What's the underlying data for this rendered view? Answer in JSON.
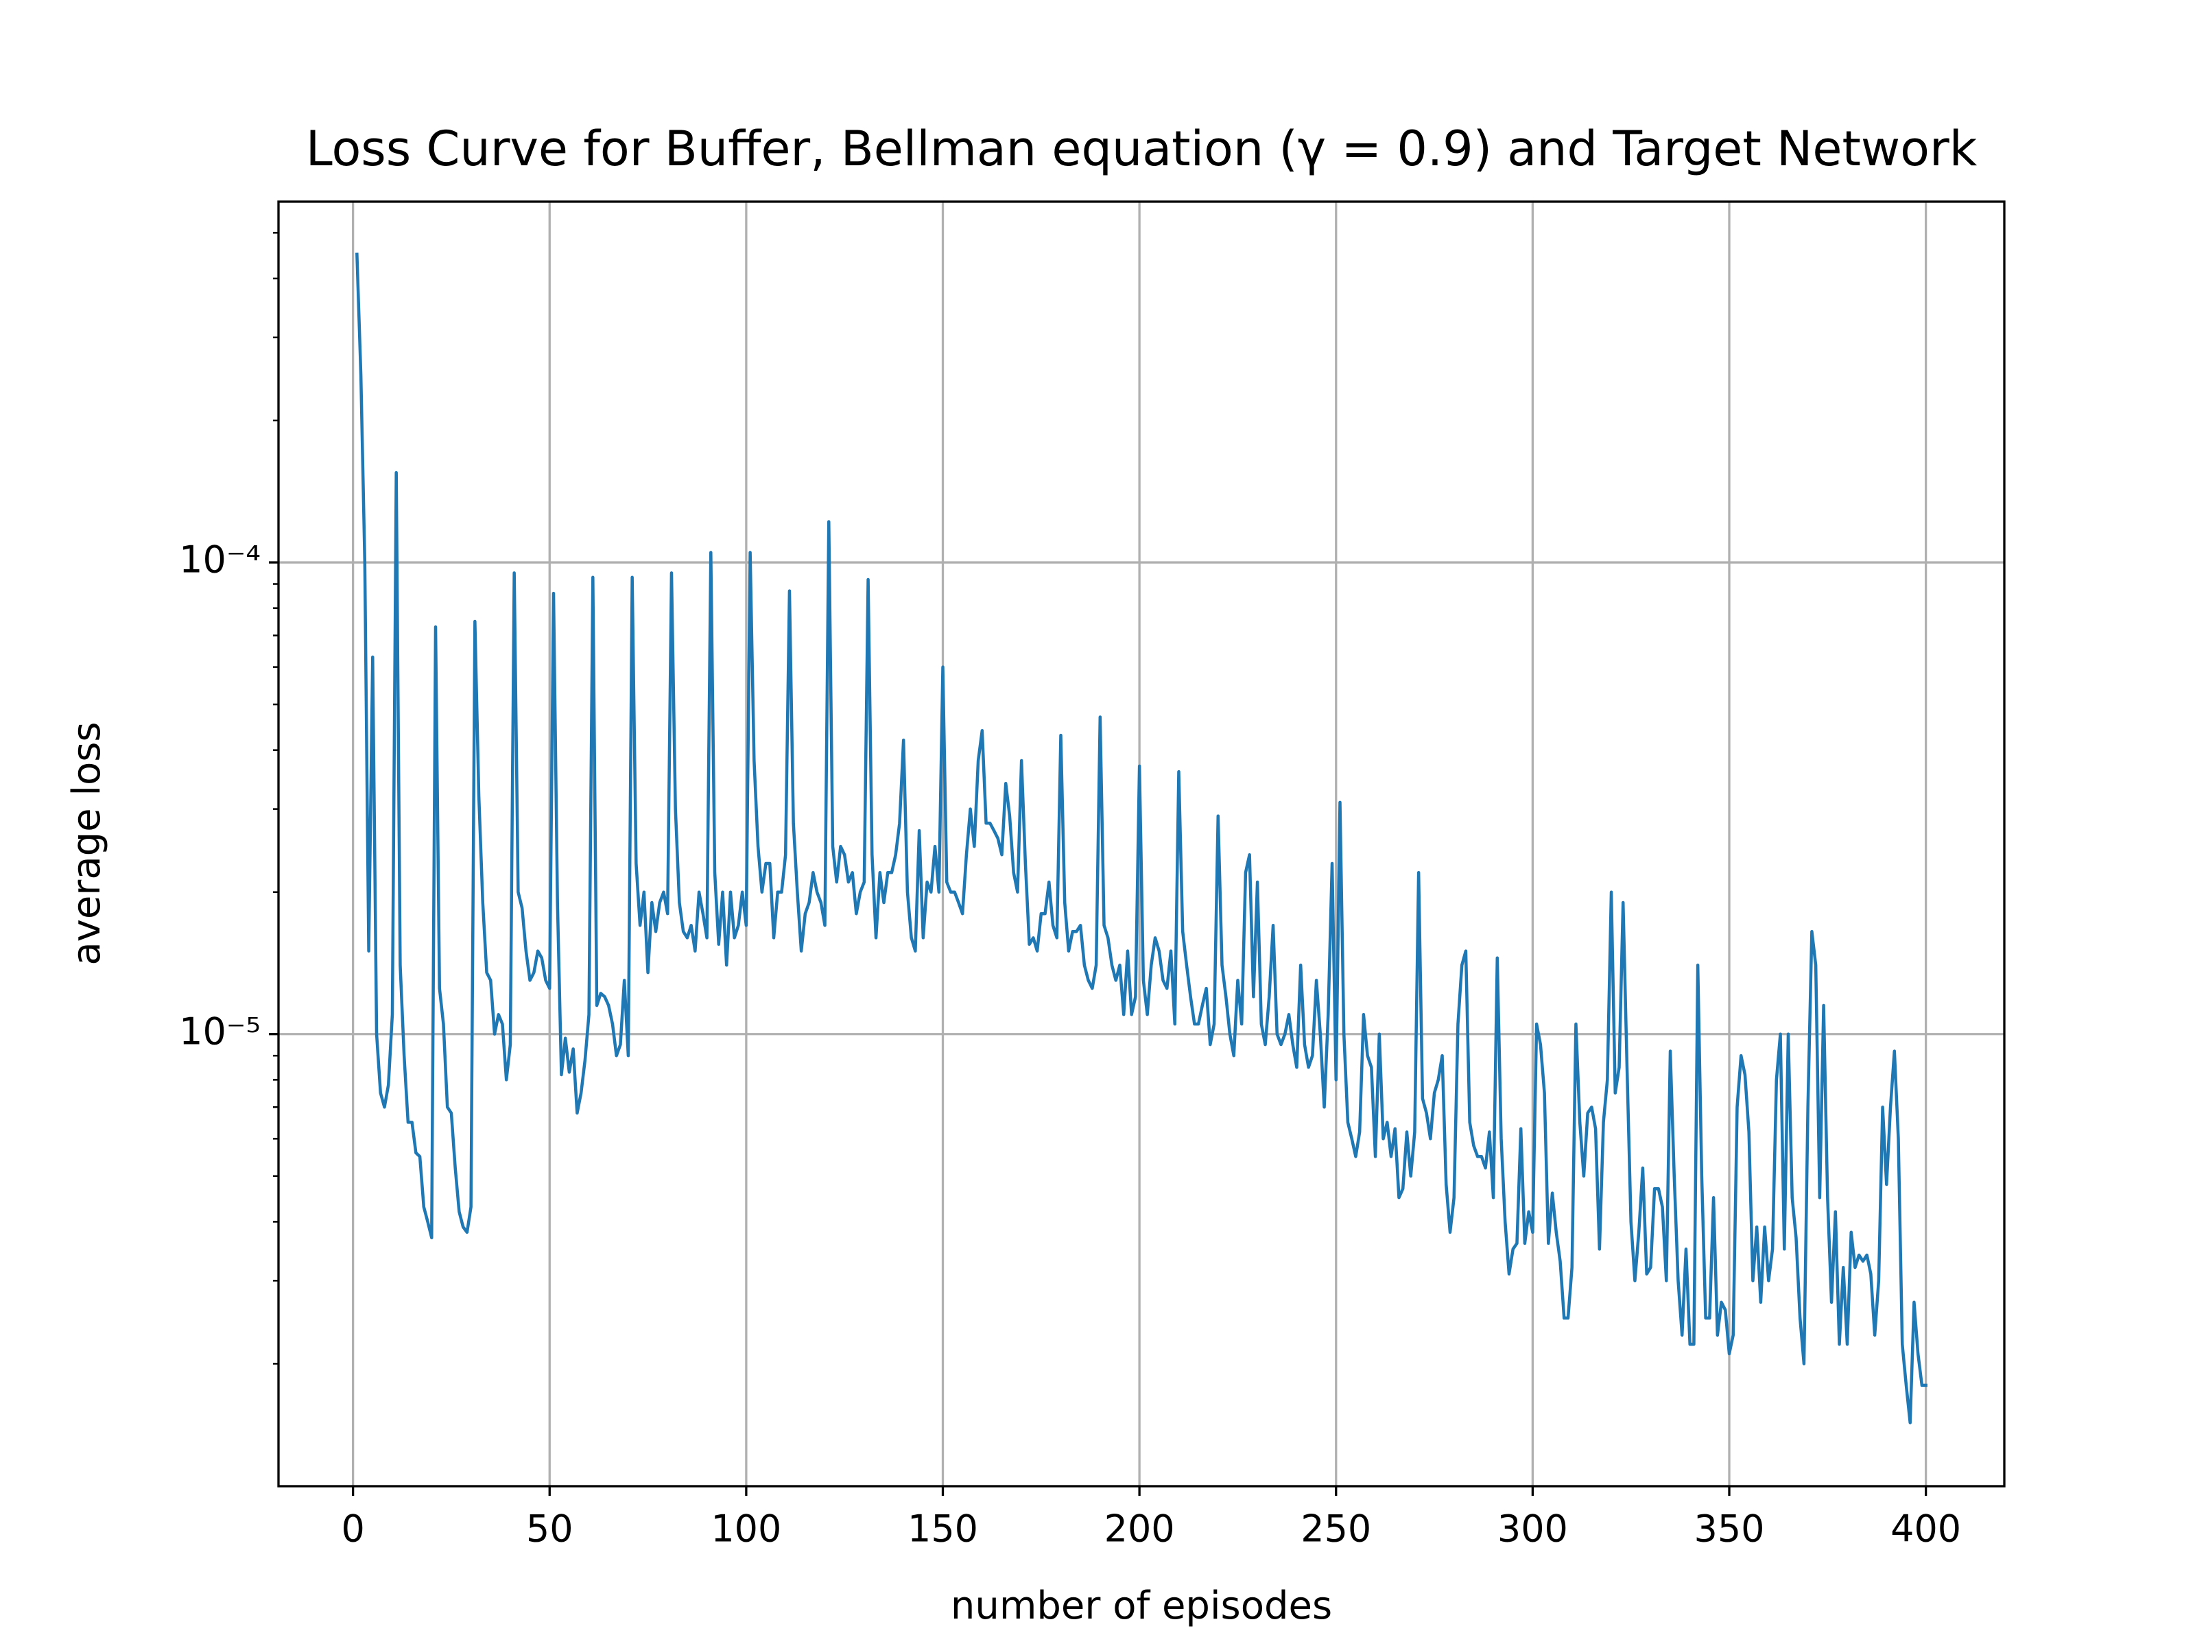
{
  "chart_data": {
    "type": "line",
    "title": "Loss Curve for Buffer, Bellman equation (γ = 0.9) and Target Network",
    "xlabel": "number of episodes",
    "ylabel": "average loss",
    "yscale": "log",
    "grid": true,
    "color": "#1f77b4",
    "xlim": [
      -18.95,
      419.95
    ],
    "ylim": [
      1.1e-06,
      0.000582
    ],
    "xticks": [
      0,
      50,
      100,
      150,
      200,
      250,
      300,
      350,
      400
    ],
    "yticks": [
      {
        "value": 1e-05,
        "label": "10⁻⁵"
      },
      {
        "value": 0.0001,
        "label": "10⁻⁴"
      }
    ],
    "yminorticks": [
      2e-06,
      3e-06,
      4e-06,
      5e-06,
      6e-06,
      7e-06,
      8e-06,
      9e-06,
      2e-05,
      3e-05,
      4e-05,
      5e-05,
      6e-05,
      7e-05,
      8e-05,
      9e-05,
      0.0002,
      0.0003,
      0.0004,
      0.0005
    ],
    "x": [
      1,
      2,
      3,
      4,
      5,
      6,
      7,
      8,
      9,
      10,
      11,
      12,
      13,
      14,
      15,
      16,
      17,
      18,
      19,
      20,
      21,
      22,
      23,
      24,
      25,
      26,
      27,
      28,
      29,
      30,
      31,
      32,
      33,
      34,
      35,
      36,
      37,
      38,
      39,
      40,
      41,
      42,
      43,
      44,
      45,
      46,
      47,
      48,
      49,
      50,
      51,
      52,
      53,
      54,
      55,
      56,
      57,
      58,
      59,
      60,
      61,
      62,
      63,
      64,
      65,
      66,
      67,
      68,
      69,
      70,
      71,
      72,
      73,
      74,
      75,
      76,
      77,
      78,
      79,
      80,
      81,
      82,
      83,
      84,
      85,
      86,
      87,
      88,
      89,
      90,
      91,
      92,
      93,
      94,
      95,
      96,
      97,
      98,
      99,
      100,
      101,
      102,
      103,
      104,
      105,
      106,
      107,
      108,
      109,
      110,
      111,
      112,
      113,
      114,
      115,
      116,
      117,
      118,
      119,
      120,
      121,
      122,
      123,
      124,
      125,
      126,
      127,
      128,
      129,
      130,
      131,
      132,
      133,
      134,
      135,
      136,
      137,
      138,
      139,
      140,
      141,
      142,
      143,
      144,
      145,
      146,
      147,
      148,
      149,
      150,
      151,
      152,
      153,
      154,
      155,
      156,
      157,
      158,
      159,
      160,
      161,
      162,
      163,
      164,
      165,
      166,
      167,
      168,
      169,
      170,
      171,
      172,
      173,
      174,
      175,
      176,
      177,
      178,
      179,
      180,
      181,
      182,
      183,
      184,
      185,
      186,
      187,
      188,
      189,
      190,
      191,
      192,
      193,
      194,
      195,
      196,
      197,
      198,
      199,
      200,
      201,
      202,
      203,
      204,
      205,
      206,
      207,
      208,
      209,
      210,
      211,
      212,
      213,
      214,
      215,
      216,
      217,
      218,
      219,
      220,
      221,
      222,
      223,
      224,
      225,
      226,
      227,
      228,
      229,
      230,
      231,
      232,
      233,
      234,
      235,
      236,
      237,
      238,
      239,
      240,
      241,
      242,
      243,
      244,
      245,
      246,
      247,
      248,
      249,
      250,
      251,
      252,
      253,
      254,
      255,
      256,
      257,
      258,
      259,
      260,
      261,
      262,
      263,
      264,
      265,
      266,
      267,
      268,
      269,
      270,
      271,
      272,
      273,
      274,
      275,
      276,
      277,
      278,
      279,
      280,
      281,
      282,
      283,
      284,
      285,
      286,
      287,
      288,
      289,
      290,
      291,
      292,
      293,
      294,
      295,
      296,
      297,
      298,
      299,
      300,
      301,
      302,
      303,
      304,
      305,
      306,
      307,
      308,
      309,
      310,
      311,
      312,
      313,
      314,
      315,
      316,
      317,
      318,
      319,
      320,
      321,
      322,
      323,
      324,
      325,
      326,
      327,
      328,
      329,
      330,
      331,
      332,
      333,
      334,
      335,
      336,
      337,
      338,
      339,
      340,
      341,
      342,
      343,
      344,
      345,
      346,
      347,
      348,
      349,
      350,
      351,
      352,
      353,
      354,
      355,
      356,
      357,
      358,
      359,
      360,
      361,
      362,
      363,
      364,
      365,
      366,
      367,
      368,
      369,
      370,
      371,
      372,
      373,
      374,
      375,
      376,
      377,
      378,
      379,
      380,
      381,
      382,
      383,
      384,
      385,
      386,
      387,
      388,
      389,
      390,
      391,
      392,
      393,
      394,
      395,
      396,
      397,
      398,
      399,
      400
    ],
    "values": [
      0.00045,
      0.00025,
      0.0001,
      1.5e-05,
      6.3e-05,
      1e-05,
      7.5e-06,
      7e-06,
      7.8e-06,
      1.1e-05,
      0.000155,
      1.4e-05,
      9e-06,
      6.5e-06,
      6.5e-06,
      5.6e-06,
      5.5e-06,
      4.3e-06,
      4e-06,
      3.7e-06,
      7.3e-05,
      1.25e-05,
      1.05e-05,
      7e-06,
      6.8e-06,
      5.2e-06,
      4.2e-06,
      3.9e-06,
      3.8e-06,
      4.3e-06,
      7.5e-05,
      3.2e-05,
      1.9e-05,
      1.35e-05,
      1.3e-05,
      1e-05,
      1.1e-05,
      1.05e-05,
      8e-06,
      9.5e-06,
      9.5e-05,
      2e-05,
      1.85e-05,
      1.5e-05,
      1.3e-05,
      1.35e-05,
      1.5e-05,
      1.45e-05,
      1.3e-05,
      1.25e-05,
      8.6e-05,
      1.9e-05,
      8.2e-06,
      9.8e-06,
      8.3e-06,
      9.3e-06,
      6.8e-06,
      7.5e-06,
      8.8e-06,
      1.1e-05,
      9.3e-05,
      1.15e-05,
      1.22e-05,
      1.2e-05,
      1.15e-05,
      1.05e-05,
      9e-06,
      9.5e-06,
      1.3e-05,
      9e-06,
      9.3e-05,
      2.3e-05,
      1.7e-05,
      2e-05,
      1.35e-05,
      1.9e-05,
      1.65e-05,
      1.9e-05,
      2e-05,
      1.8e-05,
      9.5e-05,
      3e-05,
      1.9e-05,
      1.65e-05,
      1.6e-05,
      1.7e-05,
      1.5e-05,
      2e-05,
      1.8e-05,
      1.6e-05,
      0.000105,
      2.2e-05,
      1.55e-05,
      2e-05,
      1.4e-05,
      2e-05,
      1.6e-05,
      1.7e-05,
      2e-05,
      1.7e-05,
      0.000105,
      3.8e-05,
      2.5e-05,
      2e-05,
      2.3e-05,
      2.3e-05,
      1.6e-05,
      2e-05,
      2e-05,
      2.4e-05,
      8.7e-05,
      2.8e-05,
      2e-05,
      1.5e-05,
      1.8e-05,
      1.9e-05,
      2.2e-05,
      2e-05,
      1.9e-05,
      1.7e-05,
      0.000122,
      2.5e-05,
      2.1e-05,
      2.5e-05,
      2.4e-05,
      2.1e-05,
      2.2e-05,
      1.8e-05,
      2e-05,
      2.1e-05,
      9.2e-05,
      2.4e-05,
      1.6e-05,
      2.2e-05,
      1.9e-05,
      2.2e-05,
      2.2e-05,
      2.4e-05,
      2.8e-05,
      4.2e-05,
      2e-05,
      1.6e-05,
      1.5e-05,
      2.7e-05,
      1.6e-05,
      2.1e-05,
      2e-05,
      2.5e-05,
      2e-05,
      6e-05,
      2.1e-05,
      2e-05,
      2e-05,
      1.9e-05,
      1.8e-05,
      2.4e-05,
      3e-05,
      2.5e-05,
      3.8e-05,
      4.4e-05,
      2.8e-05,
      2.8e-05,
      2.7e-05,
      2.6e-05,
      2.4e-05,
      3.4e-05,
      2.9e-05,
      2.2e-05,
      2e-05,
      3.8e-05,
      2.3e-05,
      1.55e-05,
      1.6e-05,
      1.5e-05,
      1.8e-05,
      1.8e-05,
      2.1e-05,
      1.7e-05,
      1.6e-05,
      4.3e-05,
      1.9e-05,
      1.5e-05,
      1.65e-05,
      1.65e-05,
      1.7e-05,
      1.4e-05,
      1.3e-05,
      1.25e-05,
      1.4e-05,
      4.7e-05,
      1.7e-05,
      1.6e-05,
      1.4e-05,
      1.3e-05,
      1.4e-05,
      1.1e-05,
      1.5e-05,
      1.1e-05,
      1.2e-05,
      3.7e-05,
      1.3e-05,
      1.1e-05,
      1.4e-05,
      1.6e-05,
      1.5e-05,
      1.3e-05,
      1.25e-05,
      1.5e-05,
      1.05e-05,
      3.6e-05,
      1.65e-05,
      1.4e-05,
      1.2e-05,
      1.05e-05,
      1.05e-05,
      1.15e-05,
      1.25e-05,
      9.5e-06,
      1.05e-05,
      2.9e-05,
      1.4e-05,
      1.2e-05,
      1e-05,
      9e-06,
      1.3e-05,
      1.05e-05,
      2.2e-05,
      2.4e-05,
      1.2e-05,
      2.1e-05,
      1.05e-05,
      9.5e-06,
      1.2e-05,
      1.7e-05,
      1e-05,
      9.5e-06,
      1e-05,
      1.1e-05,
      9.5e-06,
      8.5e-06,
      1.4e-05,
      9.5e-06,
      8.5e-06,
      9e-06,
      1.3e-05,
      1e-05,
      7e-06,
      1.1e-05,
      2.3e-05,
      8e-06,
      3.1e-05,
      1e-05,
      6.5e-06,
      6e-06,
      5.5e-06,
      6.2e-06,
      1.1e-05,
      9e-06,
      8.5e-06,
      5.5e-06,
      1e-05,
      6e-06,
      6.5e-06,
      5.5e-06,
      6.3e-06,
      4.5e-06,
      4.7e-06,
      6.2e-06,
      5e-06,
      6.2e-06,
      2.2e-05,
      7.3e-06,
      6.8e-06,
      6e-06,
      7.5e-06,
      8e-06,
      9e-06,
      4.8e-06,
      3.8e-06,
      4.5e-06,
      1.05e-05,
      1.4e-05,
      1.5e-05,
      6.5e-06,
      5.8e-06,
      5.5e-06,
      5.5e-06,
      5.2e-06,
      6.2e-06,
      4.5e-06,
      1.45e-05,
      6e-06,
      4e-06,
      3.1e-06,
      3.5e-06,
      3.6e-06,
      6.3e-06,
      3.6e-06,
      4.2e-06,
      3.8e-06,
      1.05e-05,
      9.5e-06,
      7.5e-06,
      3.6e-06,
      4.6e-06,
      3.8e-06,
      3.3e-06,
      2.5e-06,
      2.5e-06,
      3.2e-06,
      1.05e-05,
      6.5e-06,
      5e-06,
      6.8e-06,
      7e-06,
      6.3e-06,
      3.5e-06,
      6.5e-06,
      8e-06,
      2e-05,
      7.5e-06,
      8.5e-06,
      1.9e-05,
      8.5e-06,
      4e-06,
      3e-06,
      3.8e-06,
      5.2e-06,
      3.1e-06,
      3.2e-06,
      4.7e-06,
      4.7e-06,
      4.3e-06,
      3e-06,
      9.2e-06,
      5e-06,
      3e-06,
      2.3e-06,
      3.5e-06,
      2.2e-06,
      2.2e-06,
      1.4e-05,
      5e-06,
      2.5e-06,
      2.5e-06,
      4.5e-06,
      2.3e-06,
      2.7e-06,
      2.6e-06,
      2.1e-06,
      2.3e-06,
      7e-06,
      9e-06,
      8.2e-06,
      6.2e-06,
      3e-06,
      3.9e-06,
      2.7e-06,
      3.9e-06,
      3e-06,
      3.5e-06,
      8e-06,
      1e-05,
      3.5e-06,
      1e-05,
      4.5e-06,
      3.7e-06,
      2.5e-06,
      2e-06,
      7e-06,
      1.65e-05,
      1.4e-05,
      4.5e-06,
      1.15e-05,
      4.5e-06,
      2.7e-06,
      4.2e-06,
      2.2e-06,
      3.2e-06,
      2.2e-06,
      3.8e-06,
      3.2e-06,
      3.4e-06,
      3.3e-06,
      3.4e-06,
      3.1e-06,
      2.3e-06,
      3e-06,
      7e-06,
      4.8e-06,
      7e-06,
      9.2e-06,
      6e-06,
      2.2e-06,
      1.8e-06,
      1.5e-06,
      2.7e-06,
      2.1e-06,
      1.8e-06,
      1.8e-06
    ]
  }
}
